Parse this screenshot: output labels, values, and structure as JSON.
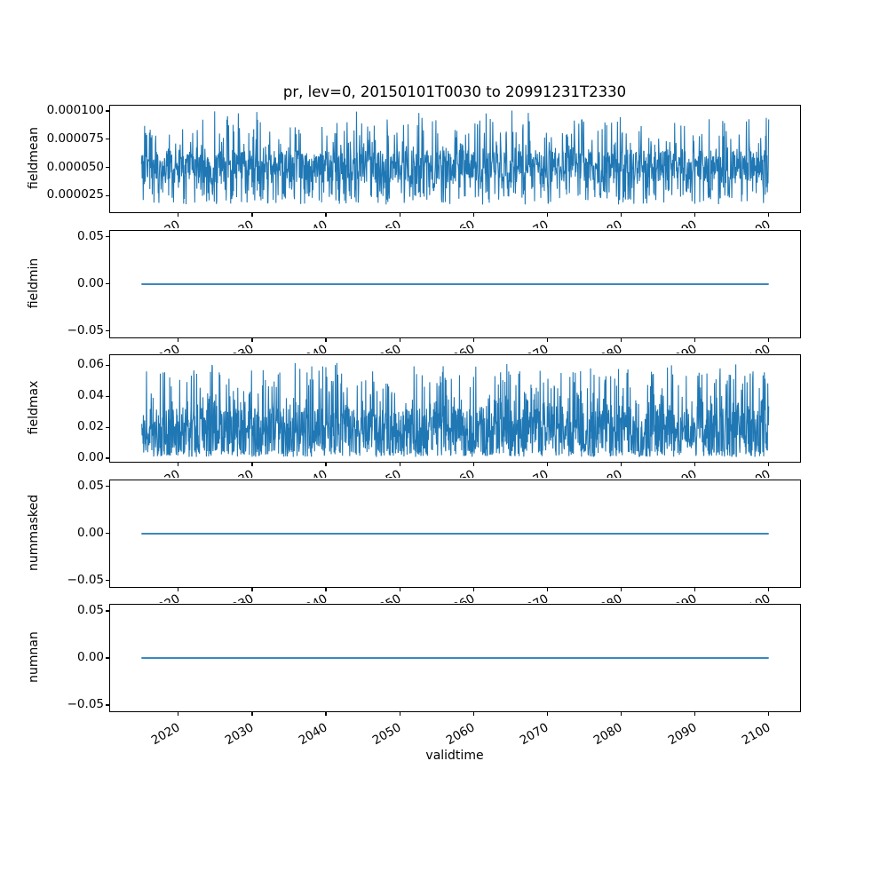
{
  "figure": {
    "title": "pr, lev=0, 20150101T0030 to 20991231T2330",
    "xlabel": "validtime",
    "background": "#ffffff",
    "line_color": "#1f77b4"
  },
  "xticks": {
    "values": [
      2020,
      2030,
      2040,
      2050,
      2060,
      2070,
      2080,
      2090,
      2100
    ],
    "labels": [
      "2020",
      "2030",
      "2040",
      "2050",
      "2060",
      "2070",
      "2080",
      "2090",
      "2100"
    ]
  },
  "chart_data": [
    {
      "type": "line",
      "ylabel": "fieldmean",
      "x_range": [
        2015,
        2100
      ],
      "xlim": [
        2010.75,
        2104.25
      ],
      "ylim": [
        1.02e-05,
        0.0001048
      ],
      "yticks": [
        {
          "v": 0.0001,
          "label": "0.000100"
        },
        {
          "v": 7.5e-05,
          "label": "0.000075"
        },
        {
          "v": 5e-05,
          "label": "0.000050"
        },
        {
          "v": 2.5e-05,
          "label": "0.000025"
        }
      ],
      "series": [
        {
          "name": "fieldmean",
          "kind": "noisy",
          "color": "#1f77b4",
          "linewidth": 1.1,
          "summary": {
            "min": 1.5e-05,
            "max": 0.0001,
            "dense_band": [
              3.4e-05,
              6.6e-05
            ],
            "mean": 5e-05
          },
          "gen": {
            "seed": 42,
            "n": 1800,
            "base": 5e-05,
            "spread": 3e-05,
            "peak": [
              0.01,
              9.2e-05,
              8.5e-06
            ],
            "hi": [
              0.06,
              7.8e-05,
              1.5e-05
            ],
            "up": [
              0.28,
              1.9e-05
            ],
            "down": [
              0.14,
              3.3e-05,
              -1.6e-05
            ],
            "clamp": [
              1.5e-05,
              0.0001005
            ]
          }
        }
      ]
    },
    {
      "type": "line",
      "ylabel": "fieldmin",
      "x_range": [
        2015,
        2100
      ],
      "xlim": [
        2010.75,
        2104.25
      ],
      "ylim": [
        -0.0566,
        0.0566
      ],
      "yticks": [
        {
          "v": 0.05,
          "label": "0.05"
        },
        {
          "v": 0.0,
          "label": "0.00"
        },
        {
          "v": -0.05,
          "label": "−0.05"
        }
      ],
      "series": [
        {
          "name": "fieldmin",
          "kind": "flat",
          "color": "#1f77b4",
          "linewidth": 1.8,
          "value": 0.0,
          "summary": {
            "constant": 0.0
          }
        }
      ]
    },
    {
      "type": "line",
      "ylabel": "fieldmax",
      "x_range": [
        2015,
        2100
      ],
      "xlim": [
        2010.75,
        2104.25
      ],
      "ylim": [
        -0.0023,
        0.0666
      ],
      "yticks": [
        {
          "v": 0.06,
          "label": "0.06"
        },
        {
          "v": 0.04,
          "label": "0.04"
        },
        {
          "v": 0.02,
          "label": "0.02"
        },
        {
          "v": 0.0,
          "label": "0.00"
        }
      ],
      "series": [
        {
          "name": "fieldmax",
          "kind": "noisy",
          "color": "#1f77b4",
          "linewidth": 1.1,
          "summary": {
            "min": 0.001,
            "max": 0.0635,
            "dense_band": [
              0.004,
              0.035
            ],
            "mean": 0.02
          },
          "gen": {
            "seed": 1337,
            "n": 2000,
            "base": 0.018,
            "spread": 0.028,
            "peak": [
              0.012,
              0.055,
              0.008
            ],
            "hi": [
              0.072,
              0.045,
              0.012
            ],
            "up": [
              0.35,
              0.016
            ],
            "down": [
              0.18,
              0.0008,
              0.0045
            ],
            "clamp": [
              0.0008,
              0.0635
            ]
          }
        }
      ]
    },
    {
      "type": "line",
      "ylabel": "nummasked",
      "x_range": [
        2015,
        2100
      ],
      "xlim": [
        2010.75,
        2104.25
      ],
      "ylim": [
        -0.0566,
        0.0566
      ],
      "yticks": [
        {
          "v": 0.05,
          "label": "0.05"
        },
        {
          "v": 0.0,
          "label": "0.00"
        },
        {
          "v": -0.05,
          "label": "−0.05"
        }
      ],
      "series": [
        {
          "name": "nummasked",
          "kind": "flat",
          "color": "#1f77b4",
          "linewidth": 1.8,
          "value": 0.0,
          "summary": {
            "constant": 0.0
          }
        }
      ]
    },
    {
      "type": "line",
      "ylabel": "numnan",
      "x_range": [
        2015,
        2100
      ],
      "xlim": [
        2010.75,
        2104.25
      ],
      "ylim": [
        -0.0566,
        0.0566
      ],
      "yticks": [
        {
          "v": 0.05,
          "label": "0.05"
        },
        {
          "v": 0.0,
          "label": "0.00"
        },
        {
          "v": -0.05,
          "label": "−0.05"
        }
      ],
      "series": [
        {
          "name": "numnan",
          "kind": "flat",
          "color": "#1f77b4",
          "linewidth": 1.8,
          "value": 0.0,
          "summary": {
            "constant": 0.0
          }
        }
      ]
    }
  ]
}
